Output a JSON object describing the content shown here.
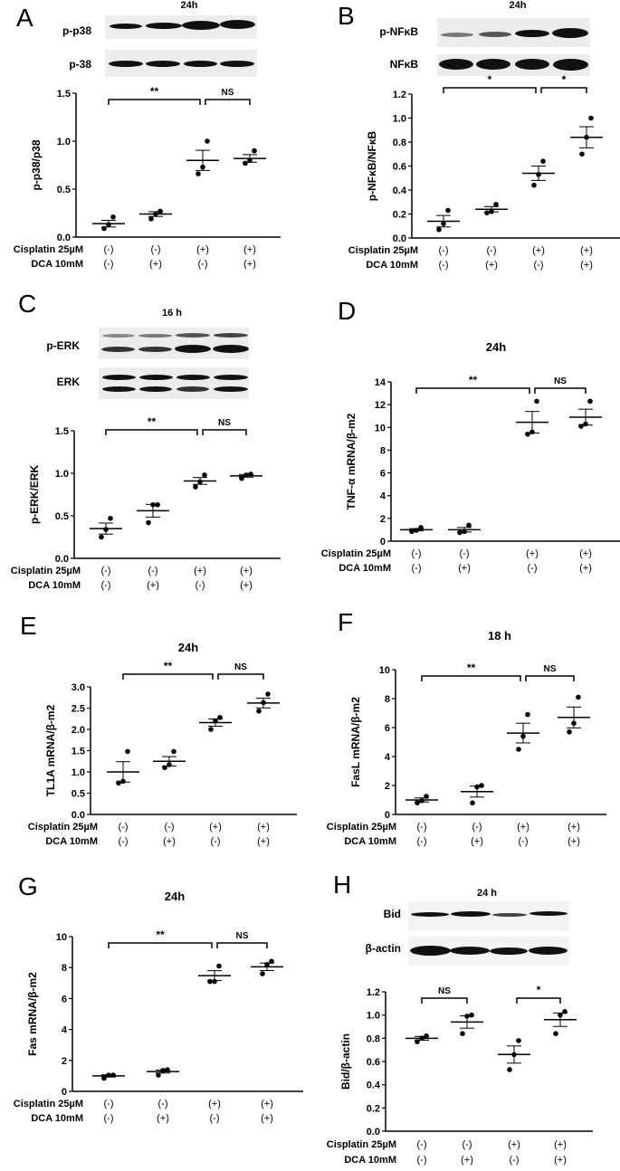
{
  "figure": {
    "condition_rows": {
      "cisplatin_label": "Cisplatin 25µM",
      "dca_label": "DCA 10mM",
      "dca_label_h": "DCA   10mM",
      "cisplatin": [
        "(-)",
        "(-)",
        "(+)",
        "(+)"
      ],
      "dca": [
        "(-)",
        "(+)",
        "(-)",
        "(+)"
      ]
    }
  },
  "panels": {
    "A": {
      "letter": "A",
      "time": "24h",
      "blots": [
        "p-p38",
        "p-38"
      ]
    },
    "B": {
      "letter": "B",
      "time": "24h",
      "blots": [
        "p-NFκB",
        "NFκB"
      ]
    },
    "C": {
      "letter": "C",
      "time": "16 h",
      "blots": [
        "p-ERK",
        "ERK"
      ]
    },
    "D": {
      "letter": "D",
      "time": "24h"
    },
    "E": {
      "letter": "E",
      "time": "24h"
    },
    "F": {
      "letter": "F",
      "time": "18 h"
    },
    "G": {
      "letter": "G",
      "time": "24h"
    },
    "H": {
      "letter": "H",
      "time": "24 h",
      "blots": [
        "Bid",
        "β-actin"
      ]
    }
  },
  "chart_data": [
    {
      "panel": "A",
      "type": "scatter",
      "title": "24h",
      "ylabel": "p-p38/p38",
      "ylim": [
        0,
        1.5
      ],
      "yticks": [
        0.0,
        0.5,
        1.0,
        1.5
      ],
      "ytick_labels": [
        "0.0",
        "0.5",
        "1.0",
        "1.5"
      ],
      "categories": [
        "Cis(-) DCA(-)",
        "Cis(-) DCA(+)",
        "Cis(+) DCA(-)",
        "Cis(+) DCA(+)"
      ],
      "points": [
        [
          0.09,
          0.13,
          0.21
        ],
        [
          0.19,
          0.24,
          0.27
        ],
        [
          0.66,
          0.73,
          1.0
        ],
        [
          0.77,
          0.8,
          0.9
        ]
      ],
      "mean": [
        0.14,
        0.24,
        0.8,
        0.82
      ],
      "sem": [
        0.035,
        0.025,
        0.105,
        0.04
      ],
      "significance": [
        {
          "from": 0,
          "to": 2,
          "label": "**"
        },
        {
          "from": 2,
          "to": 3,
          "label": "NS"
        }
      ]
    },
    {
      "panel": "B",
      "type": "scatter",
      "title": "24h",
      "ylabel": "p-NFκB/NFκB",
      "ylim": [
        0,
        1.2
      ],
      "yticks": [
        0.0,
        0.2,
        0.4,
        0.6,
        0.8,
        1.0,
        1.2
      ],
      "ytick_labels": [
        "0.0",
        "0.2",
        "0.4",
        "0.6",
        "0.8",
        "1.0",
        "1.2"
      ],
      "categories": [
        "Cis(-) DCA(-)",
        "Cis(-) DCA(+)",
        "Cis(+) DCA(-)",
        "Cis(+) DCA(+)"
      ],
      "points": [
        [
          0.07,
          0.12,
          0.23
        ],
        [
          0.21,
          0.22,
          0.28
        ],
        [
          0.44,
          0.53,
          0.64
        ],
        [
          0.7,
          0.84,
          1.0
        ]
      ],
      "mean": [
        0.14,
        0.24,
        0.54,
        0.84
      ],
      "sem": [
        0.048,
        0.022,
        0.06,
        0.088
      ],
      "significance": [
        {
          "from": 0,
          "to": 2,
          "label": "*"
        },
        {
          "from": 2,
          "to": 3,
          "label": "*"
        }
      ]
    },
    {
      "panel": "C",
      "type": "scatter",
      "title": "16 h",
      "ylabel": "p-ERK/ERK",
      "ylim": [
        0,
        1.5
      ],
      "yticks": [
        0.0,
        0.5,
        1.0,
        1.5
      ],
      "ytick_labels": [
        "0.0",
        "0.5",
        "1.0",
        "1.5"
      ],
      "categories": [
        "Cis(-) DCA(-)",
        "Cis(-) DCA(+)",
        "Cis(+) DCA(-)",
        "Cis(+) DCA(+)"
      ],
      "points": [
        [
          0.25,
          0.34,
          0.47
        ],
        [
          0.42,
          0.63,
          0.63
        ],
        [
          0.84,
          0.9,
          0.98
        ],
        [
          0.94,
          0.98,
          0.99
        ]
      ],
      "mean": [
        0.35,
        0.56,
        0.91,
        0.97
      ],
      "sem": [
        0.065,
        0.075,
        0.04,
        0.016
      ],
      "significance": [
        {
          "from": 0,
          "to": 2,
          "label": "**"
        },
        {
          "from": 2,
          "to": 3,
          "label": "NS"
        }
      ]
    },
    {
      "panel": "D",
      "type": "scatter",
      "title": "24h",
      "ylabel": "TNF-α mRNA/β-m2",
      "ylim": [
        0,
        14
      ],
      "yticks": [
        0,
        2,
        4,
        6,
        8,
        10,
        12,
        14
      ],
      "ytick_labels": [
        "0",
        "2",
        "4",
        "6",
        "8",
        "10",
        "12",
        "14"
      ],
      "categories": [
        "Cis(-) DCA(-)",
        "Cis(-) DCA(+)",
        "Cis(+) DCA(-)",
        "Cis(+) DCA(+)"
      ],
      "points": [
        [
          0.85,
          0.95,
          1.2
        ],
        [
          0.75,
          0.85,
          1.4
        ],
        [
          9.4,
          9.6,
          12.3
        ],
        [
          10.1,
          10.3,
          12.3
        ]
      ],
      "mean": [
        1.0,
        1.0,
        10.45,
        10.9
      ],
      "sem": [
        0.1,
        0.2,
        0.95,
        0.7
      ],
      "significance": [
        {
          "from": 0,
          "to": 2,
          "label": "**"
        },
        {
          "from": 2,
          "to": 3,
          "label": "NS"
        }
      ]
    },
    {
      "panel": "E",
      "type": "scatter",
      "title": "24h",
      "ylabel": "TL1A mRNA/β-m2",
      "ylim": [
        0,
        3.0
      ],
      "yticks": [
        0.0,
        0.5,
        1.0,
        1.5,
        2.0,
        2.5,
        3.0
      ],
      "ytick_labels": [
        "0.0",
        "0.5",
        "1.0",
        "1.5",
        "2.0",
        "2.5",
        "3.0"
      ],
      "categories": [
        "Cis(-) DCA(-)",
        "Cis(-) DCA(+)",
        "Cis(+) DCA(-)",
        "Cis(+) DCA(+)"
      ],
      "points": [
        [
          0.74,
          0.78,
          1.48
        ],
        [
          1.1,
          1.17,
          1.48
        ],
        [
          2.0,
          2.2,
          2.28
        ],
        [
          2.43,
          2.63,
          2.83
        ]
      ],
      "mean": [
        1.0,
        1.25,
        2.16,
        2.62
      ],
      "sem": [
        0.24,
        0.11,
        0.085,
        0.115
      ],
      "significance": [
        {
          "from": 0,
          "to": 2,
          "label": "**"
        },
        {
          "from": 2,
          "to": 3,
          "label": "NS"
        }
      ]
    },
    {
      "panel": "F",
      "type": "scatter",
      "title": "18 h",
      "ylabel": "FasL mRNA/β-m2",
      "ylim": [
        0,
        10
      ],
      "yticks": [
        0,
        2,
        4,
        6,
        8,
        10
      ],
      "ytick_labels": [
        "0",
        "2",
        "4",
        "6",
        "8",
        "10"
      ],
      "categories": [
        "Cis(-) DCA(-)",
        "Cis(-) DCA(+)",
        "Cis(+) DCA(-)",
        "Cis(+) DCA(+)"
      ],
      "points": [
        [
          0.8,
          0.95,
          1.25
        ],
        [
          0.8,
          1.9,
          2.0
        ],
        [
          4.5,
          5.4,
          6.9
        ],
        [
          5.7,
          6.3,
          8.1
        ]
      ],
      "mean": [
        1.0,
        1.58,
        5.62,
        6.7
      ],
      "sem": [
        0.14,
        0.38,
        0.68,
        0.72
      ],
      "significance": [
        {
          "from": 0,
          "to": 2,
          "label": "**"
        },
        {
          "from": 2,
          "to": 3,
          "label": "NS"
        }
      ]
    },
    {
      "panel": "G",
      "type": "scatter",
      "title": "24h",
      "ylabel": "Fas mRNA/β-m2",
      "ylim": [
        0,
        10
      ],
      "yticks": [
        0,
        2,
        4,
        6,
        8,
        10
      ],
      "ytick_labels": [
        "0",
        "2",
        "4",
        "6",
        "8",
        "10"
      ],
      "categories": [
        "Cis(-) DCA(-)",
        "Cis(-) DCA(+)",
        "Cis(+) DCA(-)",
        "Cis(+) DCA(+)"
      ],
      "points": [
        [
          0.85,
          1.05,
          1.05
        ],
        [
          1.05,
          1.35,
          1.4
        ],
        [
          7.1,
          7.1,
          8.1
        ],
        [
          7.6,
          8.2,
          8.4
        ]
      ],
      "mean": [
        1.0,
        1.28,
        7.48,
        8.05
      ],
      "sem": [
        0.07,
        0.1,
        0.32,
        0.24
      ],
      "significance": [
        {
          "from": 0,
          "to": 2,
          "label": "**"
        },
        {
          "from": 2,
          "to": 3,
          "label": "NS"
        }
      ]
    },
    {
      "panel": "H",
      "type": "scatter",
      "title": "24 h",
      "ylabel": "Bid/β-actin",
      "ylim": [
        0,
        1.2
      ],
      "yticks": [
        0.0,
        0.2,
        0.4,
        0.6,
        0.8,
        1.0,
        1.2
      ],
      "ytick_labels": [
        "0.0",
        "0.2",
        "0.4",
        "0.6",
        "0.8",
        "1.0",
        "1.2"
      ],
      "categories": [
        "Cis(-) DCA(-)",
        "Cis(-) DCA(+)",
        "Cis(+) DCA(-)",
        "Cis(+) DCA(+)"
      ],
      "points": [
        [
          0.77,
          0.8,
          0.82
        ],
        [
          0.84,
          0.99,
          1.0
        ],
        [
          0.53,
          0.66,
          0.78
        ],
        [
          0.84,
          1.0,
          1.03
        ]
      ],
      "mean": [
        0.8,
        0.94,
        0.66,
        0.96
      ],
      "sem": [
        0.016,
        0.053,
        0.074,
        0.058
      ],
      "significance": [
        {
          "from": 0,
          "to": 1,
          "label": "NS"
        },
        {
          "from": 2,
          "to": 3,
          "label": "*"
        }
      ]
    }
  ]
}
